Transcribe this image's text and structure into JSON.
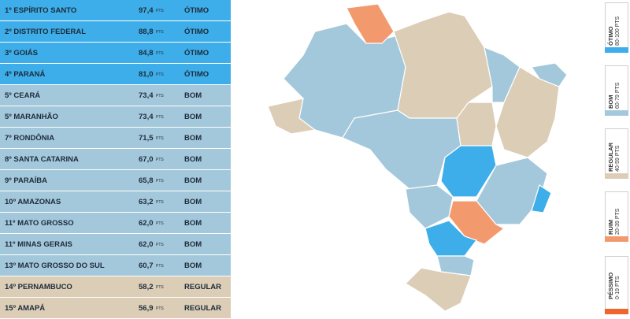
{
  "table": {
    "rows": [
      {
        "name": "1º ESPÍRITO SANTO",
        "score": "97,4",
        "unit": "PTS",
        "rating": "ÓTIMO"
      },
      {
        "name": "2º DISTRITO FEDERAL",
        "score": "88,8",
        "unit": "PTS",
        "rating": "ÓTIMO"
      },
      {
        "name": "3º GOIÁS",
        "score": "84,8",
        "unit": "PTS",
        "rating": "ÓTIMO"
      },
      {
        "name": "4º PARANÁ",
        "score": "81,0",
        "unit": "PTS",
        "rating": "ÓTIMO"
      },
      {
        "name": "5º CEARÁ",
        "score": "73,4",
        "unit": "PTS",
        "rating": "BOM"
      },
      {
        "name": "5º MARANHÃO",
        "score": "73,4",
        "unit": "PTS",
        "rating": "BOM"
      },
      {
        "name": "7º RONDÔNIA",
        "score": "71,5",
        "unit": "PTS",
        "rating": "BOM"
      },
      {
        "name": "8º SANTA CATARINA",
        "score": "67,0",
        "unit": "PTS",
        "rating": "BOM"
      },
      {
        "name": "9º PARAÍBA",
        "score": "65,8",
        "unit": "PTS",
        "rating": "BOM"
      },
      {
        "name": "10º AMAZONAS",
        "score": "63,2",
        "unit": "PTS",
        "rating": "BOM"
      },
      {
        "name": "11º MATO GROSSO",
        "score": "62,0",
        "unit": "PTS",
        "rating": "BOM"
      },
      {
        "name": "11º MINAS GERAIS",
        "score": "62,0",
        "unit": "PTS",
        "rating": "BOM"
      },
      {
        "name": "13º MATO GROSSO DO SUL",
        "score": "60,7",
        "unit": "PTS",
        "rating": "BOM"
      },
      {
        "name": "14º PERNAMBUCO",
        "score": "58,2",
        "unit": "PTS",
        "rating": "REGULAR"
      },
      {
        "name": "15º AMAPÁ",
        "score": "56,9",
        "unit": "PTS",
        "rating": "REGULAR"
      }
    ]
  },
  "legend": [
    {
      "label": "ÓTIMO",
      "range": "80-100 PTS"
    },
    {
      "label": "BOM",
      "range": "60-79 PTS"
    },
    {
      "label": "REGULAR",
      "range": "40-59 PTS"
    },
    {
      "label": "RUIM",
      "range": "20-39 PTS"
    },
    {
      "label": "PÉSSIMO",
      "range": "0-19 PTS"
    }
  ]
}
